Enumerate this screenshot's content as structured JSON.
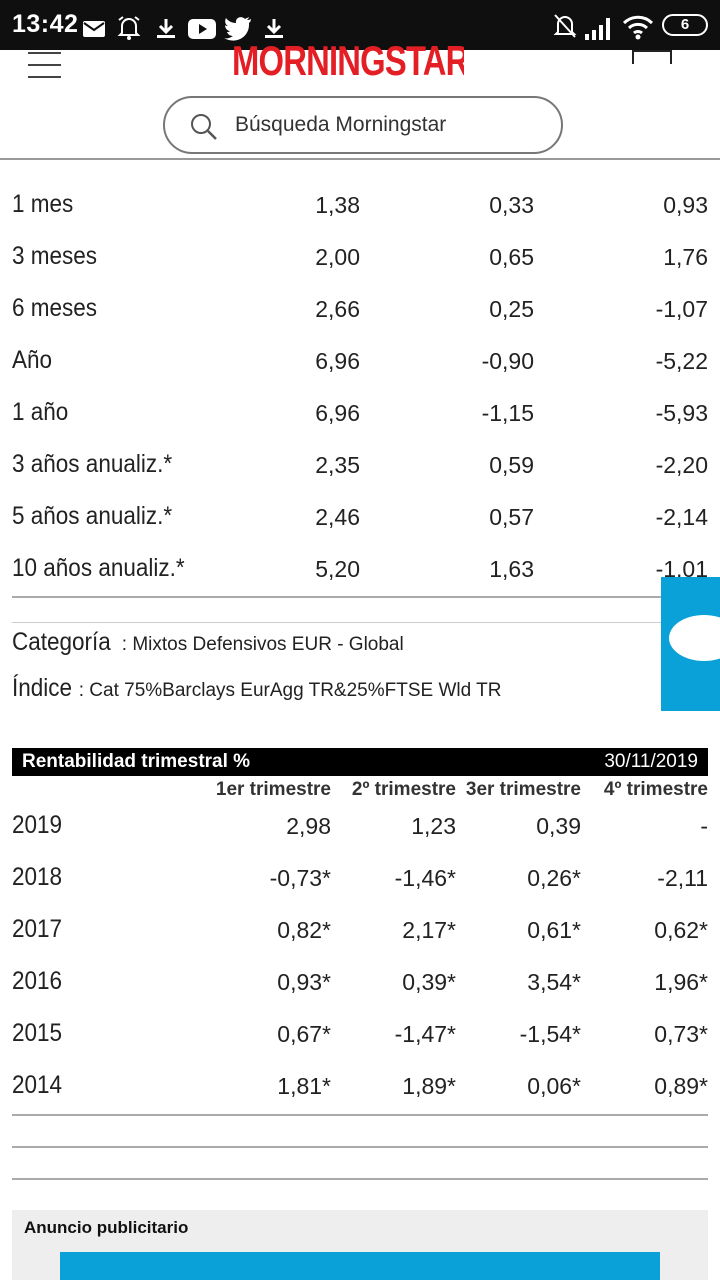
{
  "status_bar": {
    "time": "13:42",
    "battery": "6",
    "icons": [
      "mail-icon",
      "alarm-icon",
      "download-icon",
      "youtube-icon",
      "twitter-icon",
      "download-icon",
      "mute-icon",
      "signal-icon",
      "wifi-icon",
      "battery-icon"
    ]
  },
  "header": {
    "logo": "MORNINGSTAR",
    "search_placeholder": "Búsqueda Morningstar"
  },
  "returns": {
    "rows": [
      {
        "label": "1 mes",
        "values": [
          "1,38",
          "0,33",
          "0,93"
        ]
      },
      {
        "label": "3 meses",
        "values": [
          "2,00",
          "0,65",
          "1,76"
        ]
      },
      {
        "label": "6 meses",
        "values": [
          "2,66",
          "0,25",
          "-1,07"
        ]
      },
      {
        "label": "Año",
        "values": [
          "6,96",
          "-0,90",
          "-5,22"
        ]
      },
      {
        "label": "1 año",
        "values": [
          "6,96",
          "-1,15",
          "-5,93"
        ]
      },
      {
        "label": "3 años anualiz.*",
        "values": [
          "2,35",
          "0,59",
          "-2,20"
        ]
      },
      {
        "label": "5 años anualiz.*",
        "values": [
          "2,46",
          "0,57",
          "-2,14"
        ]
      },
      {
        "label": "10 años anualiz.*",
        "values": [
          "5,20",
          "1,63",
          "-1,01"
        ]
      }
    ]
  },
  "category": {
    "label": "Categoría",
    "value": "Mixtos Defensivos EUR - Global"
  },
  "index": {
    "label": "Índice",
    "value": "Cat 75%Barclays EurAgg TR&25%FTSE Wld TR"
  },
  "quarterly": {
    "title": "Rentabilidad trimestral %",
    "date": "30/11/2019",
    "columns": [
      "1er trimestre",
      "2º trimestre",
      "3er trimestre",
      "4º trimestre"
    ],
    "rows": [
      {
        "year": "2019",
        "values": [
          "2,98",
          "1,23",
          "0,39",
          "-"
        ]
      },
      {
        "year": "2018",
        "values": [
          "-0,73*",
          "-1,46*",
          "0,26*",
          "-2,11"
        ]
      },
      {
        "year": "2017",
        "values": [
          "0,82*",
          "2,17*",
          "0,61*",
          "0,62*"
        ]
      },
      {
        "year": "2016",
        "values": [
          "0,93*",
          "0,39*",
          "3,54*",
          "1,96*"
        ]
      },
      {
        "year": "2015",
        "values": [
          "0,67*",
          "-1,47*",
          "-1,54*",
          "0,73*"
        ]
      },
      {
        "year": "2014",
        "values": [
          "1,81*",
          "1,89*",
          "0,06*",
          "0,89*"
        ]
      }
    ]
  },
  "ad": {
    "label": "Anuncio publicitario"
  },
  "colors": {
    "brand_red": "#e31e24",
    "chat_blue": "#0aa0d8"
  }
}
